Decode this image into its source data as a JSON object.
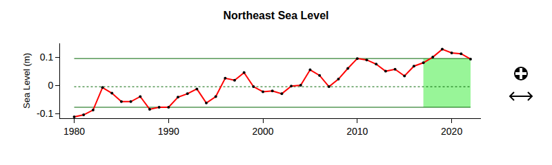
{
  "chart_data": {
    "type": "line",
    "title": "Northeast Sea Level",
    "y_label": "Sea Level (m)",
    "x": [
      1980,
      1981,
      1982,
      1983,
      1984,
      1985,
      1986,
      1987,
      1988,
      1989,
      1990,
      1991,
      1992,
      1993,
      1994,
      1995,
      1996,
      1997,
      1998,
      1999,
      2000,
      2001,
      2002,
      2003,
      2004,
      2005,
      2006,
      2007,
      2008,
      2009,
      2010,
      2011,
      2012,
      2013,
      2014,
      2015,
      2016,
      2017,
      2018,
      2019,
      2020,
      2021,
      2022
    ],
    "values": [
      -0.112,
      -0.105,
      -0.088,
      -0.008,
      -0.028,
      -0.058,
      -0.058,
      -0.04,
      -0.085,
      -0.078,
      -0.078,
      -0.042,
      -0.03,
      -0.013,
      -0.063,
      -0.04,
      0.025,
      0.018,
      0.045,
      -0.005,
      -0.023,
      -0.02,
      -0.03,
      -0.003,
      0.0,
      0.055,
      0.035,
      -0.005,
      0.022,
      0.06,
      0.095,
      0.09,
      0.075,
      0.05,
      0.057,
      0.033,
      0.068,
      0.08,
      0.1,
      0.128,
      0.115,
      0.112,
      0.093
    ],
    "color": "#ff0000",
    "marker": "circle",
    "xlim": [
      1978.5,
      2023.1
    ],
    "xticks": [
      1980,
      1990,
      2000,
      2010,
      2020
    ],
    "ylim": [
      -0.117,
      0.149
    ],
    "yticks": [
      -0.1,
      0,
      0.1
    ],
    "reference_lines": [
      {
        "value": 0.095,
        "color": "#006400",
        "line_style": "solid"
      },
      {
        "value": -0.005,
        "color": "#006400",
        "line_style": "dot"
      },
      {
        "value": -0.078,
        "color": "#006400",
        "line_style": "solid"
      }
    ],
    "highlight": {
      "x": [
        2017,
        2022
      ],
      "y": [
        -0.078,
        0.095
      ],
      "color": "#98f598"
    }
  }
}
